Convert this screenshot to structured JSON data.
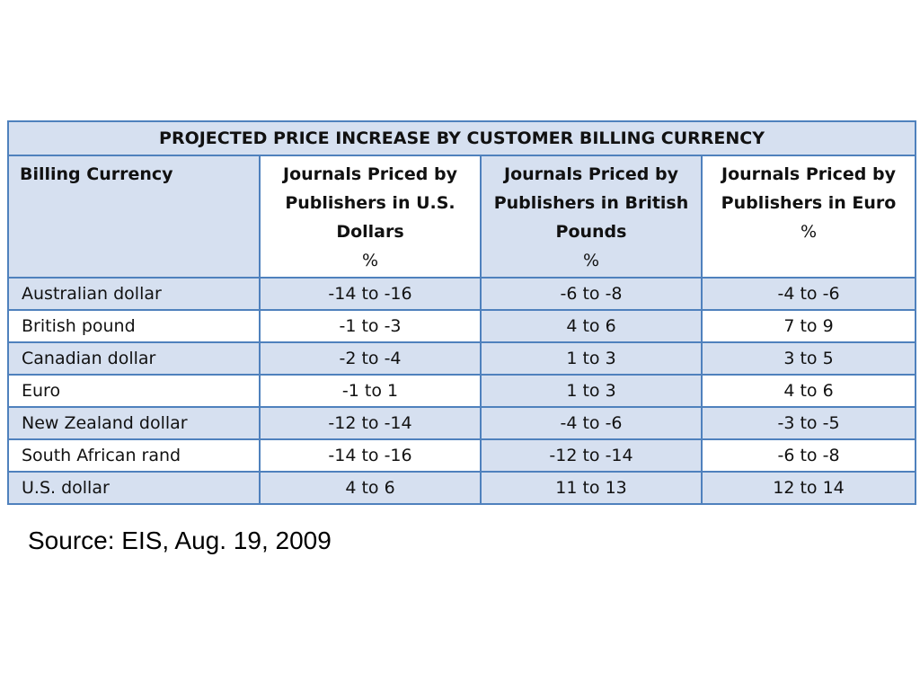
{
  "table": {
    "title": "PROJECTED PRICE INCREASE BY CUSTOMER BILLING CURRENCY",
    "headers": {
      "billing": "Billing Currency",
      "usd": "Journals Priced by Publishers in U.S. Dollars",
      "gbp": "Journals Priced by Publishers in British Pounds",
      "eur": "Journals Priced by Publishers in Euro",
      "pct": "%"
    },
    "rows": [
      {
        "currency": "Australian dollar",
        "usd": "-14 to -16",
        "gbp": "-6 to -8",
        "eur": "-4 to -6"
      },
      {
        "currency": "British pound",
        "usd": "-1 to -3",
        "gbp": "4 to 6",
        "eur": "7 to 9"
      },
      {
        "currency": "Canadian dollar",
        "usd": "-2 to -4",
        "gbp": "1 to 3",
        "eur": "3 to 5"
      },
      {
        "currency": "Euro",
        "usd": "-1 to 1",
        "gbp": "1 to 3",
        "eur": "4 to 6"
      },
      {
        "currency": "New Zealand dollar",
        "usd": "-12 to -14",
        "gbp": "-4 to -6",
        "eur": "-3 to -5"
      },
      {
        "currency": "South African rand",
        "usd": "-14 to -16",
        "gbp": "-12 to -14",
        "eur": "-6 to -8"
      },
      {
        "currency": "U.S. dollar",
        "usd": "4 to 6",
        "gbp": "11 to 13",
        "eur": "12 to 14"
      }
    ]
  },
  "source": "Source: EIS, Aug. 19, 2009",
  "colors": {
    "border": "#4f81bd",
    "shade": "#d6e0f0"
  }
}
